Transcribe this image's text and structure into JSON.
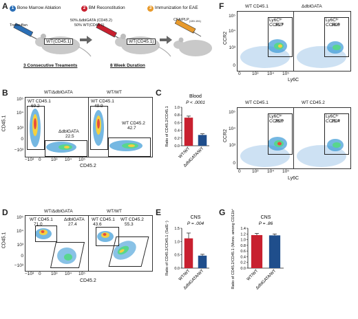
{
  "panels": {
    "A": {
      "letter": "A",
      "steps": [
        {
          "num": "1",
          "label": "Bone Marrow Ablation",
          "color": "#2b6fb6"
        },
        {
          "num": "2",
          "label": "BM Reconstitution",
          "color": "#c8202f"
        },
        {
          "num": "3",
          "label": "Immunization for EAE",
          "color": "#e89a2c"
        }
      ],
      "treosulfan": "Treosulfan",
      "donor_line1": "50% ΔdblGATA (CD45.2)",
      "donor_line2": "50% WT(CD45.1)",
      "mouse1_label": "WT(CD45.1)",
      "mouse2_label": "WT(CD45.1)",
      "cfa": "CFA/PLP",
      "cfa_sub": "(139-151)",
      "bottom1": "3 Consecutive Treaments",
      "bottom2": "8 Week Duration"
    },
    "B": {
      "letter": "B",
      "col1": "WT/ΔdblGATA",
      "col2": "WT/WT",
      "ylabel": "CD45.1",
      "xlabel": "CD45.2",
      "left_gate1_name": "WT CD45.1",
      "left_gate1_val": "69.2",
      "left_gate2_name": "ΔdblGATA",
      "left_gate2_val": "22.5",
      "right_gate1_name": "WT CD45.1",
      "right_gate1_val": "49.9",
      "right_gate2_name": "WT CD45.2",
      "right_gate2_val": "42.7",
      "yticks": [
        "10⁵",
        "10⁴",
        "10³",
        "0",
        "−10³"
      ],
      "xticks": [
        "−10³",
        "0",
        "10³",
        "10⁴",
        "10⁵"
      ]
    },
    "C": {
      "letter": "C",
      "title": "Blood",
      "pval": "P < .0001",
      "ylabel": "Ratio of CD45.2/CD45.1",
      "yticks": [
        "1.0",
        "0.8",
        "0.6",
        "0.4",
        "0.2",
        "0.0"
      ],
      "cats": [
        "WT/WT",
        "ΔdblGATA/WT"
      ]
    },
    "D": {
      "letter": "D",
      "col1": "WT/ΔdblGATA",
      "col2": "WT/WT",
      "ylabel": "CD45.1",
      "xlabel": "CD45.2",
      "left_gate1_name": "WT CD45.1",
      "left_gate1_val": "71.0",
      "left_gate2_name": "ΔdblGATA",
      "left_gate2_val": "27.4",
      "right_gate1_name": "WT CD45.1",
      "right_gate1_val": "43.6",
      "right_gate2_name": "WT CD45.2",
      "right_gate2_val": "55.3",
      "yticks": [
        "10⁵",
        "10⁴",
        "10³",
        "0",
        "−10³"
      ],
      "xticks": [
        "−10³",
        "0",
        "10³",
        "10⁴",
        "10⁵"
      ]
    },
    "E": {
      "letter": "E",
      "title": "CNS",
      "pval": "P = .004",
      "ylabel": "Ratio of CD45.2/CD45.1 (Sall1⁻)",
      "yticks": [
        "1.5",
        "1.0",
        "0.5",
        "0.0"
      ],
      "cats": [
        "WT/WT",
        "ΔdblGATA/WT"
      ]
    },
    "F": {
      "letter": "F",
      "top_col1": "WT CD45.1",
      "top_col2": "ΔdblGATA",
      "top_gate_name": "Ly6Cʰⁱ CCR2ʰⁱ",
      "top_left_val": "35.7",
      "top_right_val": "38.6",
      "bot_col1": "WT CD45.1",
      "bot_col2": "WT CD45.2",
      "bot_gate_name": "Ly6Cʰⁱ CCR2ʰⁱ",
      "bot_left_val": "28.0",
      "bot_right_val": "25.4",
      "ylabel": "CCR2",
      "xlabel": "Ly6C",
      "yticks": [
        "10⁵",
        "10⁴",
        "10³",
        "0"
      ],
      "xticks": [
        "0",
        "10³",
        "10⁴",
        "10⁵"
      ]
    },
    "G": {
      "letter": "G",
      "title": "CNS",
      "pval": "P = .86",
      "ylabel": "Ratio of CD45.2/CD45.1 (Mono. among CD11b⁺)",
      "yticks": [
        "1.4",
        "1.2",
        "1.0",
        "0.8",
        "0.6",
        "0.4",
        "0.2",
        "0.0"
      ],
      "cats": [
        "WT/WT",
        "ΔdblGATA/WT"
      ]
    }
  },
  "chart_data": [
    {
      "type": "bar",
      "title": "Blood",
      "categories": [
        "WT/WT",
        "ΔdblGATA/WT"
      ],
      "values": [
        0.73,
        0.28
      ],
      "errors": [
        0.04,
        0.03
      ],
      "colors": [
        "#c8202f",
        "#1f4e8c"
      ],
      "ylabel": "Ratio of CD45.2/CD45.1",
      "ylim": [
        0,
        1.0
      ],
      "annotation": "P < .0001"
    },
    {
      "type": "bar",
      "title": "CNS",
      "categories": [
        "WT/WT",
        "ΔdblGATA/WT"
      ],
      "values": [
        1.12,
        0.47
      ],
      "errors": [
        0.2,
        0.05
      ],
      "colors": [
        "#c8202f",
        "#1f4e8c"
      ],
      "ylabel": "Ratio of CD45.2/CD45.1 (Sall1⁻)",
      "ylim": [
        0,
        1.5
      ],
      "annotation": "P = .004"
    },
    {
      "type": "bar",
      "title": "CNS",
      "categories": [
        "WT/WT",
        "ΔdblGATA/WT"
      ],
      "values": [
        1.16,
        1.15
      ],
      "errors": [
        0.06,
        0.05
      ],
      "colors": [
        "#c8202f",
        "#1f4e8c"
      ],
      "ylabel": "Ratio of CD45.2/CD45.1 (Mono. among CD11b⁺)",
      "ylim": [
        0,
        1.4
      ],
      "annotation": "P = .86"
    }
  ]
}
